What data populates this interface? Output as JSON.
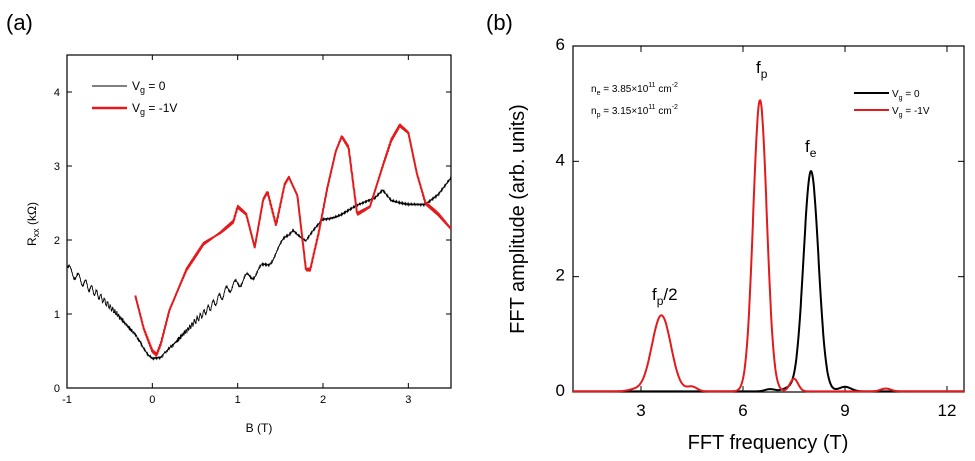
{
  "chart_data": [
    {
      "type": "line",
      "panel_label": "(a)",
      "xlabel": "B (T)",
      "ylabel_main": "R",
      "ylabel_sub": "xx",
      "ylabel_unit": " (kΩ)",
      "xlim": [
        -1,
        3.5
      ],
      "ylim": [
        0,
        4.5
      ],
      "xticks": [
        -1,
        0,
        1,
        2,
        3
      ],
      "yticks": [
        0,
        1,
        2,
        3,
        4
      ],
      "legend": [
        {
          "main": "V",
          "sub": "g",
          "rest": " = 0",
          "color": "#000000"
        },
        {
          "main": "V",
          "sub": "g",
          "rest": " = -1V",
          "color": "#e31a1c"
        }
      ],
      "series": [
        {
          "name": "Vg = 0",
          "color": "#000000",
          "x": [
            -1.0,
            -0.8,
            -0.6,
            -0.4,
            -0.2,
            -0.05,
            0.0,
            0.1,
            0.3,
            0.5,
            0.7,
            0.9,
            1.1,
            1.3,
            1.5,
            1.65,
            1.8,
            2.0,
            2.2,
            2.4,
            2.6,
            2.7,
            2.8,
            3.0,
            3.2,
            3.35,
            3.5
          ],
          "y": [
            1.62,
            1.42,
            1.22,
            0.98,
            0.72,
            0.45,
            0.4,
            0.42,
            0.65,
            0.9,
            1.12,
            1.35,
            1.48,
            1.62,
            1.9,
            2.15,
            1.98,
            2.28,
            2.35,
            2.45,
            2.55,
            2.68,
            2.55,
            2.5,
            2.48,
            2.6,
            2.82
          ],
          "osc_amp": 0.06
        },
        {
          "name": "Vg = -1V",
          "color": "#e31a1c",
          "x": [
            -0.2,
            -0.1,
            0.0,
            0.05,
            0.1,
            0.2,
            0.4,
            0.6,
            0.8,
            0.95,
            1.0,
            1.1,
            1.2,
            1.3,
            1.35,
            1.45,
            1.55,
            1.6,
            1.7,
            1.8,
            1.85,
            1.95,
            2.05,
            2.15,
            2.22,
            2.3,
            2.4,
            2.55,
            2.7,
            2.8,
            2.9,
            3.0,
            3.1,
            3.2,
            3.35,
            3.5
          ],
          "y": [
            1.25,
            0.8,
            0.5,
            0.45,
            0.6,
            1.05,
            1.6,
            1.95,
            2.1,
            2.25,
            2.45,
            2.35,
            1.9,
            2.55,
            2.65,
            2.2,
            2.75,
            2.85,
            2.6,
            1.6,
            1.6,
            2.1,
            2.7,
            3.2,
            3.4,
            3.25,
            2.35,
            2.45,
            3.0,
            3.35,
            3.55,
            3.45,
            2.9,
            2.5,
            2.35,
            2.15
          ]
        }
      ]
    },
    {
      "type": "line",
      "panel_label": "(b)",
      "xlabel": "FFT frequency (T)",
      "ylabel": "FFT amplitude (arb. units)",
      "xlim": [
        1,
        12.5
      ],
      "ylim": [
        0,
        6
      ],
      "xticks": [
        3,
        6,
        9,
        12
      ],
      "yticks": [
        0,
        2,
        4,
        6
      ],
      "annotations": {
        "ne": {
          "main": "n",
          "sub": "e",
          "rest": " = 3.85×10",
          "sup": "11",
          "unit": " cm",
          "unit_sup": "-2"
        },
        "np": {
          "main": "n",
          "sub": "p",
          "rest": " = 3.15×10",
          "sup": "11",
          "unit": " cm",
          "unit_sup": "-2"
        },
        "fp": {
          "main": "f",
          "sub": "p"
        },
        "fe": {
          "main": "f",
          "sub": "e"
        },
        "fp2": {
          "main": "f",
          "sub": "p",
          "rest": "/2"
        }
      },
      "legend": [
        {
          "main": "V",
          "sub": "g",
          "rest": " = 0",
          "color": "#000000"
        },
        {
          "main": "V",
          "sub": "g",
          "rest": " = -1V",
          "color": "#e31a1c"
        }
      ],
      "series": [
        {
          "name": "Vg = 0",
          "color": "#000000",
          "peaks": [
            {
              "center": 8.0,
              "amp": 3.82,
              "width": 0.22
            },
            {
              "center": 7.3,
              "amp": 0.05,
              "width": 0.15
            },
            {
              "center": 9.0,
              "amp": 0.08,
              "width": 0.18
            },
            {
              "center": 6.8,
              "amp": 0.04,
              "width": 0.15
            }
          ]
        },
        {
          "name": "Vg = -1V",
          "color": "#e31a1c",
          "peaks": [
            {
              "center": 3.6,
              "amp": 1.32,
              "width": 0.28
            },
            {
              "center": 6.5,
              "amp": 5.05,
              "width": 0.2
            },
            {
              "center": 4.5,
              "amp": 0.08,
              "width": 0.15
            },
            {
              "center": 7.5,
              "amp": 0.22,
              "width": 0.12
            },
            {
              "center": 10.2,
              "amp": 0.05,
              "width": 0.15
            },
            {
              "center": 2.8,
              "amp": 0.03,
              "width": 0.2
            }
          ]
        }
      ]
    }
  ]
}
